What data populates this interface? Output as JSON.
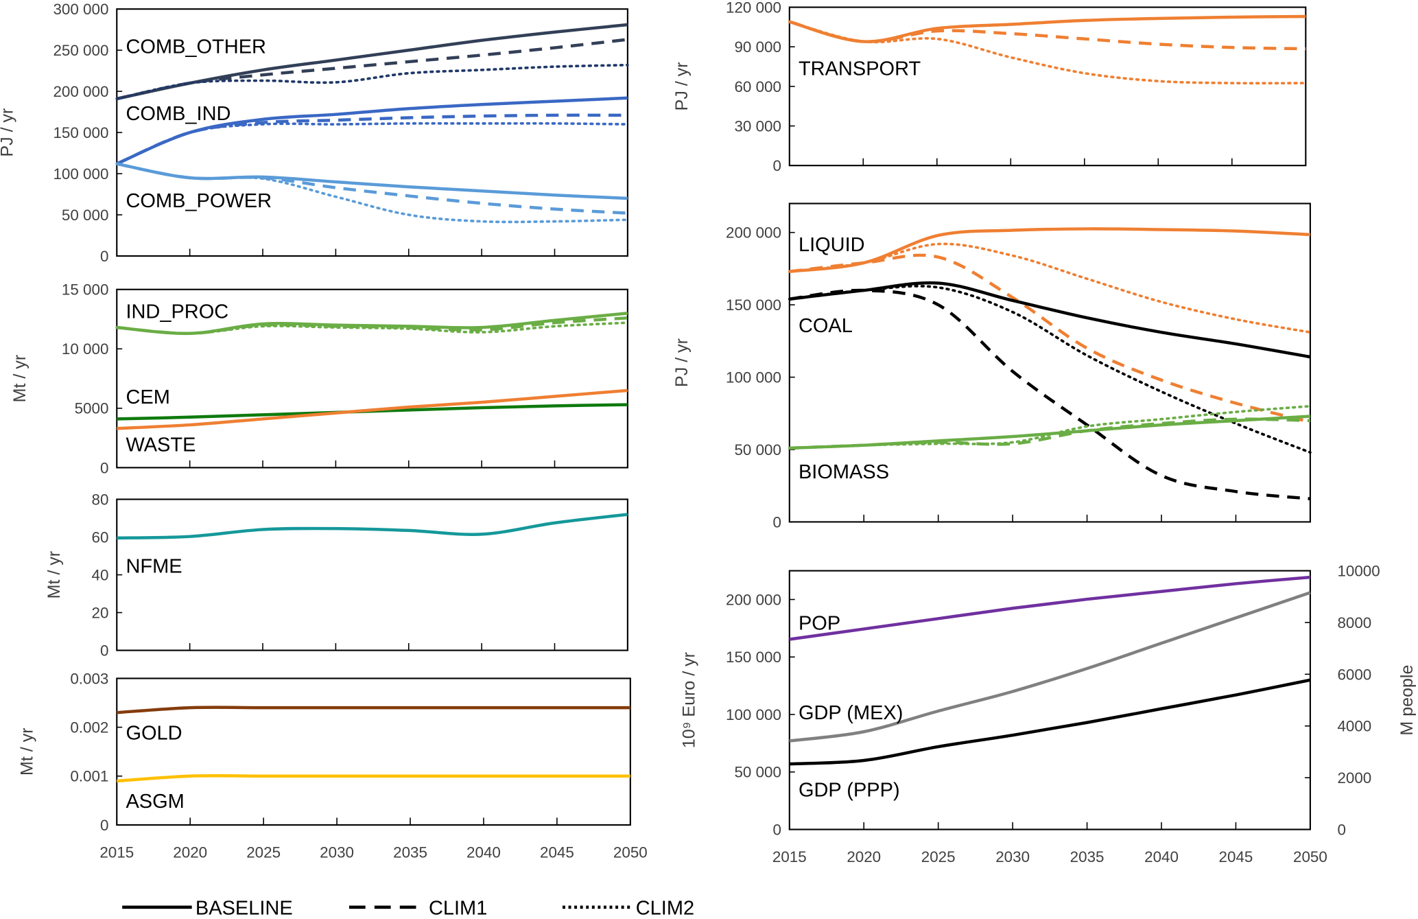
{
  "chart_data": [
    {
      "id": "comb",
      "type": "line",
      "ylabel": "PJ / yr",
      "ylim": [
        0,
        300000
      ],
      "yticks": [
        0,
        50000,
        100000,
        150000,
        200000,
        250000,
        300000
      ],
      "ytick_labels": [
        "0",
        "50 000",
        "100 000",
        "150 000",
        "200 000",
        "250 000",
        "300 000"
      ],
      "x": [
        2015,
        2020,
        2025,
        2030,
        2035,
        2040,
        2045,
        2050
      ],
      "series": [
        {
          "name": "COMB_OTHER",
          "scenario": "BASELINE",
          "color": "#323f57",
          "values": [
            191000,
            210000,
            226000,
            238000,
            250000,
            262000,
            272000,
            281000
          ]
        },
        {
          "name": "COMB_OTHER",
          "scenario": "CLIM1",
          "color": "#323f57",
          "values": [
            191000,
            210000,
            220000,
            228000,
            236000,
            244000,
            253000,
            263000
          ]
        },
        {
          "name": "COMB_OTHER",
          "scenario": "CLIM2",
          "color": "#1f3868",
          "values": [
            191000,
            210000,
            213000,
            211000,
            222000,
            226000,
            230000,
            232000
          ]
        },
        {
          "name": "COMB_IND",
          "scenario": "BASELINE",
          "color": "#3a68c4",
          "values": [
            112000,
            150000,
            166000,
            172000,
            179000,
            184000,
            188000,
            192000
          ]
        },
        {
          "name": "COMB_IND",
          "scenario": "CLIM1",
          "color": "#3a68c4",
          "values": [
            112000,
            150000,
            162000,
            165000,
            168000,
            170000,
            171000,
            171000
          ]
        },
        {
          "name": "COMB_IND",
          "scenario": "CLIM2",
          "color": "#3a68c4",
          "values": [
            112000,
            150000,
            160000,
            160000,
            161000,
            161000,
            161000,
            160000
          ]
        },
        {
          "name": "COMB_POWER",
          "scenario": "BASELINE",
          "color": "#5a9bd8",
          "values": [
            112000,
            95000,
            96000,
            90000,
            84000,
            79000,
            74000,
            70000
          ]
        },
        {
          "name": "COMB_POWER",
          "scenario": "CLIM1",
          "color": "#5a9bd8",
          "values": [
            112000,
            95000,
            95000,
            83000,
            73000,
            64000,
            57000,
            52000
          ]
        },
        {
          "name": "COMB_POWER",
          "scenario": "CLIM2",
          "color": "#5a9bd8",
          "values": [
            112000,
            95000,
            94000,
            72000,
            50000,
            42000,
            42000,
            44000
          ]
        }
      ],
      "labels": [
        {
          "text": "COMB_OTHER",
          "y": 255000
        },
        {
          "text": "COMB_IND",
          "y": 174000
        },
        {
          "text": "COMB_POWER",
          "y": 68000
        }
      ]
    },
    {
      "id": "ind",
      "type": "line",
      "ylabel": "Mt / yr",
      "ylim": [
        0,
        15000
      ],
      "yticks": [
        0,
        5000,
        10000,
        15000
      ],
      "ytick_labels": [
        "0",
        "5000",
        "10 000",
        "15 000"
      ],
      "x": [
        2015,
        2020,
        2025,
        2030,
        2035,
        2040,
        2045,
        2050
      ],
      "series": [
        {
          "name": "IND_PROC",
          "scenario": "BASELINE",
          "color": "#6aad45",
          "values": [
            11800,
            11300,
            12100,
            12000,
            11900,
            11800,
            12400,
            13000
          ]
        },
        {
          "name": "IND_PROC",
          "scenario": "CLIM1",
          "color": "#6aad45",
          "values": [
            11800,
            11300,
            12000,
            11900,
            11800,
            11600,
            12200,
            12600
          ]
        },
        {
          "name": "IND_PROC",
          "scenario": "CLIM2",
          "color": "#6aad45",
          "values": [
            11800,
            11300,
            11900,
            11800,
            11700,
            11400,
            11900,
            12200
          ]
        },
        {
          "name": "CEM",
          "scenario": "BASELINE",
          "color": "#0e7a0e",
          "values": [
            4100,
            4250,
            4450,
            4650,
            4850,
            5050,
            5200,
            5300
          ]
        },
        {
          "name": "WASTE",
          "scenario": "BASELINE",
          "color": "#ef7f32",
          "values": [
            3300,
            3600,
            4100,
            4600,
            5100,
            5500,
            6000,
            6500
          ]
        }
      ],
      "labels": [
        {
          "text": "IND_PROC",
          "y": 13200
        },
        {
          "text": "CEM",
          "y": 6000
        },
        {
          "text": "WASTE",
          "y": 2000
        }
      ]
    },
    {
      "id": "nfme",
      "type": "line",
      "ylabel": "Mt / yr",
      "ylim": [
        0,
        80
      ],
      "yticks": [
        0,
        20,
        40,
        60,
        80
      ],
      "ytick_labels": [
        "0",
        "20",
        "40",
        "60",
        "80"
      ],
      "x": [
        2015,
        2020,
        2025,
        2030,
        2035,
        2040,
        2045,
        2050
      ],
      "series": [
        {
          "name": "NFME",
          "scenario": "BASELINE",
          "color": "#15989a",
          "values": [
            59.5,
            60.3,
            64,
            64.5,
            63.5,
            61.5,
            67.5,
            72
          ]
        }
      ],
      "labels": [
        {
          "text": "NFME",
          "y": 45
        }
      ]
    },
    {
      "id": "gold",
      "type": "line",
      "ylabel": "Mt / yr",
      "ylim": [
        0,
        0.003
      ],
      "yticks": [
        0,
        0.001,
        0.002,
        0.003
      ],
      "ytick_labels": [
        "0",
        "0.001",
        "0.002",
        "0.003"
      ],
      "x": [
        2015,
        2020,
        2025,
        2030,
        2035,
        2040,
        2045,
        2050
      ],
      "xtick_labels": [
        "2015",
        "2020",
        "2025",
        "2030",
        "2035",
        "2040",
        "2045",
        "2050"
      ],
      "series": [
        {
          "name": "GOLD",
          "scenario": "BASELINE",
          "color": "#843c0c",
          "values": [
            0.0023,
            0.0024,
            0.0024,
            0.0024,
            0.0024,
            0.0024,
            0.0024,
            0.0024
          ]
        },
        {
          "name": "ASGM",
          "scenario": "BASELINE",
          "color": "#ffc000",
          "values": [
            0.0009,
            0.001,
            0.001,
            0.001,
            0.001,
            0.001,
            0.001,
            0.001
          ]
        }
      ],
      "labels": [
        {
          "text": "GOLD",
          "y": 0.0019
        },
        {
          "text": "ASGM",
          "y": 0.0005
        }
      ]
    },
    {
      "id": "transport",
      "type": "line",
      "ylabel": "PJ / yr",
      "ylim": [
        0,
        120000
      ],
      "yticks": [
        0,
        30000,
        60000,
        90000,
        120000
      ],
      "ytick_labels": [
        "0",
        "30 000",
        "60 000",
        "90 000",
        "120 000"
      ],
      "x": [
        2015,
        2020,
        2025,
        2030,
        2035,
        2040,
        2045,
        2050
      ],
      "series": [
        {
          "name": "TRANSPORT",
          "scenario": "BASELINE",
          "color": "#ef7f32",
          "values": [
            109000,
            94000,
            104000,
            107000,
            110000,
            111500,
            112500,
            113000
          ]
        },
        {
          "name": "TRANSPORT",
          "scenario": "CLIM1",
          "color": "#ef7f32",
          "values": [
            109000,
            94000,
            102000,
            100000,
            96000,
            92000,
            89500,
            88500
          ]
        },
        {
          "name": "TRANSPORT",
          "scenario": "CLIM2",
          "color": "#ef7f32",
          "values": [
            109000,
            94000,
            96000,
            82000,
            70000,
            64000,
            62500,
            62500
          ]
        }
      ],
      "labels": [
        {
          "text": "TRANSPORT",
          "y": 74000
        }
      ]
    },
    {
      "id": "fuels",
      "type": "line",
      "ylabel": "PJ / yr",
      "ylim": [
        0,
        220000
      ],
      "yticks": [
        0,
        50000,
        100000,
        150000,
        200000
      ],
      "ytick_labels": [
        "0",
        "50 000",
        "100 000",
        "150 000",
        "200 000"
      ],
      "x": [
        2015,
        2020,
        2025,
        2030,
        2035,
        2040,
        2045,
        2050
      ],
      "series": [
        {
          "name": "LIQUID",
          "scenario": "BASELINE",
          "color": "#ef7f32",
          "values": [
            173000,
            179000,
            198000,
            201500,
            202500,
            202000,
            201000,
            198500
          ]
        },
        {
          "name": "LIQUID",
          "scenario": "CLIM1",
          "color": "#ef7f32",
          "values": [
            173000,
            179000,
            183000,
            155000,
            120000,
            98000,
            82000,
            69000
          ]
        },
        {
          "name": "LIQUID",
          "scenario": "CLIM2",
          "color": "#ef7f32",
          "values": [
            173000,
            179000,
            192000,
            184000,
            168000,
            152000,
            140000,
            131000
          ]
        },
        {
          "name": "COAL",
          "scenario": "BASELINE",
          "color": "#000000",
          "values": [
            154000,
            160000,
            165000,
            153000,
            141000,
            131000,
            123000,
            114000
          ]
        },
        {
          "name": "COAL",
          "scenario": "CLIM1",
          "color": "#000000",
          "values": [
            154000,
            160000,
            150000,
            104000,
            67000,
            32000,
            21000,
            16000
          ]
        },
        {
          "name": "COAL",
          "scenario": "CLIM2",
          "color": "#000000",
          "values": [
            154000,
            160000,
            162000,
            145000,
            115000,
            90000,
            68000,
            48000
          ]
        },
        {
          "name": "BIOMASS",
          "scenario": "BASELINE",
          "color": "#6aad45",
          "values": [
            51000,
            53000,
            56000,
            59000,
            63000,
            67000,
            70000,
            73000
          ]
        },
        {
          "name": "BIOMASS",
          "scenario": "CLIM1",
          "color": "#6aad45",
          "values": [
            51000,
            53000,
            55000,
            54000,
            63000,
            68000,
            71000,
            70000
          ]
        },
        {
          "name": "BIOMASS",
          "scenario": "CLIM2",
          "color": "#6aad45",
          "values": [
            51000,
            53000,
            54000,
            55000,
            66000,
            71000,
            76000,
            80000
          ]
        }
      ],
      "labels": [
        {
          "text": "LIQUID",
          "y": 192000
        },
        {
          "text": "COAL",
          "y": 136000
        },
        {
          "text": "BIOMASS",
          "y": 35000
        }
      ]
    },
    {
      "id": "gdp",
      "type": "line",
      "ylabel": "10⁹ Euro / yr",
      "ylabel_right": "M people",
      "ylim": [
        0,
        225000
      ],
      "ylim_right": [
        0,
        10000
      ],
      "yticks": [
        0,
        50000,
        100000,
        150000,
        200000
      ],
      "ytick_labels": [
        "0",
        "50 000",
        "100 000",
        "150 000",
        "200 000"
      ],
      "yticks_right": [
        0,
        2000,
        4000,
        6000,
        8000,
        10000
      ],
      "ytick_labels_right": [
        "0",
        "2000",
        "4000",
        "6000",
        "8000",
        "10000"
      ],
      "x": [
        2015,
        2020,
        2025,
        2030,
        2035,
        2040,
        2045,
        2050
      ],
      "xtick_labels": [
        "2015",
        "2020",
        "2025",
        "2030",
        "2035",
        "2040",
        "2045",
        "2050"
      ],
      "series": [
        {
          "name": "POP",
          "scenario": "BASELINE",
          "axis": "right",
          "color": "#7030a0",
          "values": [
            7350,
            7750,
            8150,
            8550,
            8900,
            9200,
            9500,
            9750
          ]
        },
        {
          "name": "GDP (MEX)",
          "scenario": "BASELINE",
          "color": "#808080",
          "values": [
            77000,
            85000,
            103000,
            120000,
            140000,
            162000,
            184000,
            206000
          ]
        },
        {
          "name": "GDP (PPP)",
          "scenario": "BASELINE",
          "color": "#000000",
          "values": [
            57000,
            60000,
            72000,
            82000,
            93000,
            105000,
            117000,
            130000
          ]
        }
      ],
      "labels": [
        {
          "text": "POP",
          "y": 180000
        },
        {
          "text": "GDP (MEX)",
          "y": 102000
        },
        {
          "text": "GDP (PPP)",
          "y": 35000
        }
      ]
    }
  ],
  "legend": {
    "placement": "bottom",
    "items": [
      {
        "label": "BASELINE",
        "style": "solid"
      },
      {
        "label": "CLIM1",
        "style": "dashed"
      },
      {
        "label": "CLIM2",
        "style": "dotted"
      }
    ]
  }
}
